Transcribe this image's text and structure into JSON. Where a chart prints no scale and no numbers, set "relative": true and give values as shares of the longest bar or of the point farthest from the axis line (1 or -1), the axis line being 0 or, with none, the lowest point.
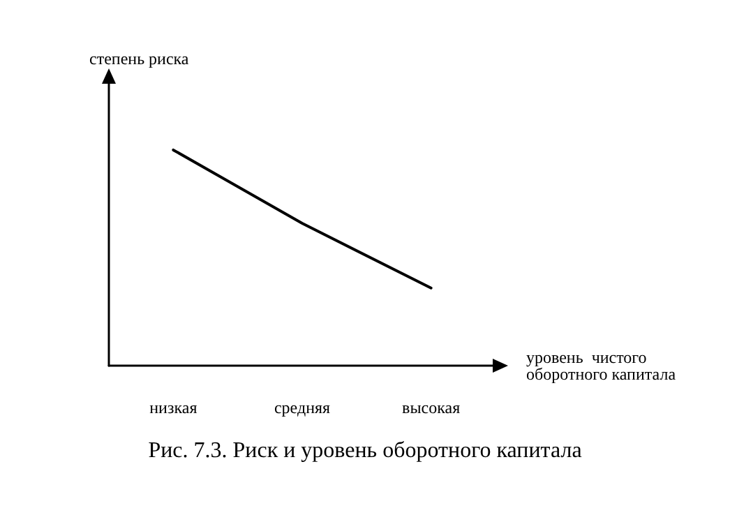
{
  "chart_data": {
    "type": "line",
    "title": "Рис. 7.3. Риск и уровень оборотного капитала",
    "xlabel": "уровень  чистого\nоборотного капитала",
    "ylabel": "степень риска",
    "categories": [
      "низкая",
      "средняя",
      "высокая"
    ],
    "series": [
      {
        "color": "#000000",
        "values": [
          1,
          0.66,
          0.36
        ]
      }
    ],
    "relative": true,
    "grid": false,
    "marker": "none",
    "line_style": "solid"
  }
}
